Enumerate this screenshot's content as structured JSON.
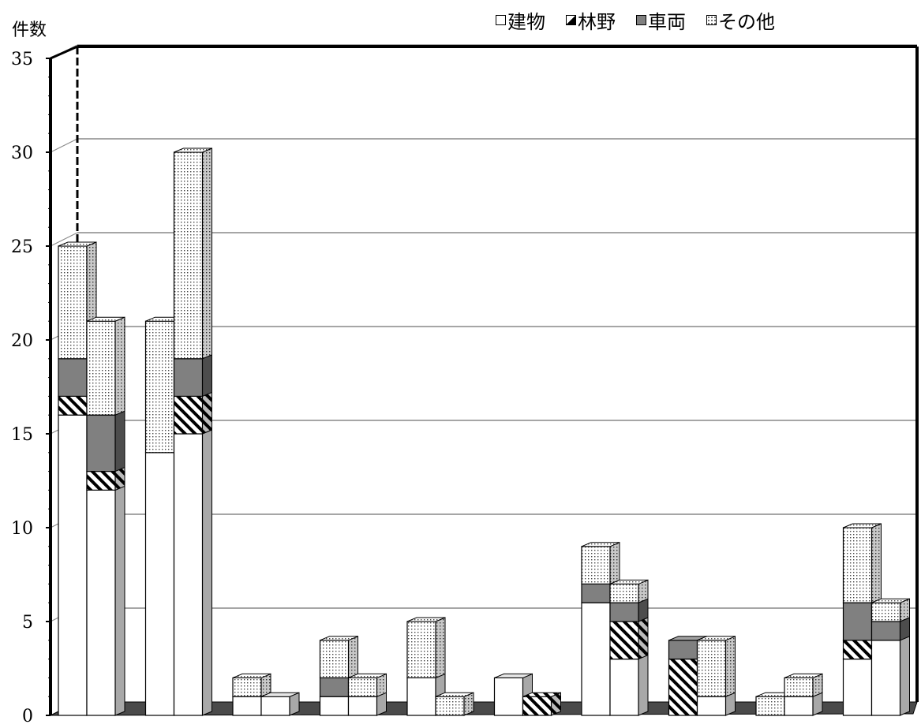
{
  "chart_data": {
    "type": "bar",
    "stacked": true,
    "view": "3d-clustered-stacked",
    "ylabel": "件数",
    "ylim": [
      0,
      35
    ],
    "yticks": [
      0,
      5,
      10,
      15,
      20,
      25,
      30,
      35
    ],
    "grid": true,
    "legend_position": "top-right",
    "series": [
      {
        "name": "建物",
        "pattern": "white",
        "color": "#ffffff"
      },
      {
        "name": "林野",
        "pattern": "diagonal-stripes",
        "color": "#000000"
      },
      {
        "name": "車両",
        "pattern": "gray",
        "color": "#808080"
      },
      {
        "name": "その他",
        "pattern": "dots",
        "color": "#d0d0d0"
      }
    ],
    "groups": [
      {
        "bars": [
          {
            "values": [
              16,
              1,
              2,
              6
            ]
          },
          {
            "values": [
              12,
              1,
              3,
              5
            ]
          }
        ]
      },
      {
        "bars": [
          {
            "values": [
              14,
              0,
              0,
              7
            ]
          },
          {
            "values": [
              15,
              2,
              2,
              11
            ]
          }
        ]
      },
      {
        "bars": [
          {
            "values": [
              1,
              0,
              0,
              1
            ]
          },
          {
            "values": [
              1,
              0,
              0,
              0
            ]
          }
        ]
      },
      {
        "bars": [
          {
            "values": [
              1,
              0,
              1,
              2
            ]
          },
          {
            "values": [
              1,
              0,
              0,
              1
            ]
          }
        ]
      },
      {
        "bars": [
          {
            "values": [
              2,
              0,
              0,
              3
            ]
          },
          {
            "values": [
              0,
              0,
              0,
              1
            ]
          }
        ]
      },
      {
        "bars": [
          {
            "values": [
              2,
              0,
              0,
              0
            ]
          },
          {
            "values": [
              0,
              1,
              0,
              0
            ]
          }
        ]
      },
      {
        "bars": [
          {
            "values": [
              6,
              0,
              1,
              2
            ]
          },
          {
            "values": [
              3,
              2,
              1,
              1
            ]
          }
        ]
      },
      {
        "bars": [
          {
            "values": [
              0,
              3,
              1,
              0
            ]
          },
          {
            "values": [
              1,
              0,
              0,
              3
            ]
          }
        ]
      },
      {
        "bars": [
          {
            "values": [
              0,
              0,
              0,
              1
            ]
          },
          {
            "values": [
              1,
              0,
              0,
              1
            ]
          }
        ]
      },
      {
        "bars": [
          {
            "values": [
              3,
              1,
              2,
              4
            ]
          },
          {
            "values": [
              4,
              0,
              1,
              1
            ]
          }
        ]
      }
    ]
  }
}
